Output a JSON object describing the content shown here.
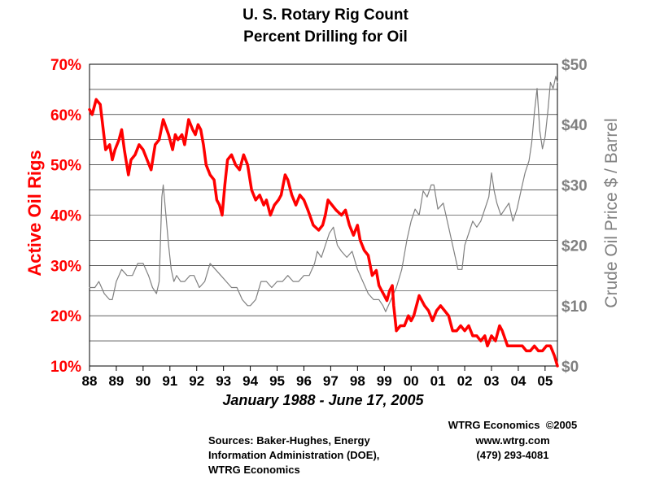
{
  "chart_data": {
    "type": "line",
    "title": [
      "U. S. Rotary Rig Count",
      "Percent Drilling for Oil"
    ],
    "subtitle": "January 1988 - June 17, 2005",
    "y_left": {
      "label": "Active Oil Rigs",
      "ticks": [
        "70%",
        "60%",
        "50%",
        "40%",
        "30%",
        "20%",
        "10%"
      ],
      "tick_values": [
        70,
        60,
        50,
        40,
        30,
        20,
        10
      ],
      "range": [
        10,
        70
      ],
      "color": "#ff0000"
    },
    "y_right": {
      "label": "Crude Oil Price $ / Barrel",
      "ticks": [
        "$50",
        "$40",
        "$30",
        "$20",
        "$10",
        "$0"
      ],
      "tick_values": [
        50,
        40,
        30,
        20,
        10,
        0
      ],
      "range": [
        0,
        50
      ],
      "color": "#808080"
    },
    "x_axis": {
      "ticks": [
        "88",
        "89",
        "90",
        "91",
        "92",
        "93",
        "94",
        "95",
        "96",
        "97",
        "98",
        "99",
        "00",
        "01",
        "02",
        "03",
        "04",
        "05"
      ],
      "tick_values": [
        1988,
        1989,
        1990,
        1991,
        1992,
        1993,
        1994,
        1995,
        1996,
        1997,
        1998,
        1999,
        2000,
        2001,
        2002,
        2003,
        2004,
        2005
      ],
      "range": [
        1988,
        2005.46
      ]
    },
    "grid": "horizontal",
    "series": [
      {
        "axis": "left",
        "color": "#ff0000",
        "x": [
          1988.0,
          1988.1,
          1988.25,
          1988.4,
          1988.6,
          1988.75,
          1988.85,
          1988.95,
          1989.1,
          1989.2,
          1989.3,
          1989.45,
          1989.55,
          1989.7,
          1989.85,
          1990.0,
          1990.15,
          1990.3,
          1990.45,
          1990.6,
          1990.75,
          1990.95,
          1991.1,
          1991.2,
          1991.3,
          1991.45,
          1991.55,
          1991.7,
          1991.85,
          1991.95,
          1992.05,
          1992.15,
          1992.25,
          1992.35,
          1992.5,
          1992.65,
          1992.75,
          1992.85,
          1992.95,
          1993.05,
          1993.15,
          1993.3,
          1993.45,
          1993.6,
          1993.75,
          1993.9,
          1994.05,
          1994.2,
          1994.35,
          1994.5,
          1994.6,
          1994.75,
          1994.9,
          1995.05,
          1995.15,
          1995.3,
          1995.4,
          1995.55,
          1995.7,
          1995.85,
          1996.0,
          1996.15,
          1996.35,
          1996.55,
          1996.7,
          1996.8,
          1996.9,
          1997.05,
          1997.2,
          1997.4,
          1997.55,
          1997.7,
          1997.85,
          1998.0,
          1998.1,
          1998.25,
          1998.4,
          1998.55,
          1998.7,
          1998.8,
          1998.9,
          1999.0,
          1999.1,
          1999.2,
          1999.3,
          1999.35,
          1999.45,
          1999.6,
          1999.75,
          1999.9,
          2000.0,
          2000.1,
          2000.3,
          2000.5,
          2000.65,
          2000.8,
          2000.95,
          2001.1,
          2001.25,
          2001.4,
          2001.55,
          2001.7,
          2001.85,
          2002.0,
          2002.15,
          2002.3,
          2002.45,
          2002.6,
          2002.75,
          2002.85,
          2003.0,
          2003.15,
          2003.3,
          2003.4,
          2003.6,
          2003.8,
          2004.0,
          2004.15,
          2004.3,
          2004.45,
          2004.6,
          2004.75,
          2004.9,
          2005.05,
          2005.2,
          2005.35,
          2005.46
        ],
        "values": [
          61,
          60,
          63,
          62,
          53,
          54,
          51,
          53,
          55,
          57,
          53,
          48,
          51,
          52,
          54,
          53,
          51,
          49,
          54,
          55,
          59,
          56,
          53,
          56,
          55,
          56,
          54,
          59,
          57,
          56,
          58,
          57,
          54,
          50,
          48,
          47,
          43,
          42,
          40,
          46,
          51,
          52,
          50,
          49,
          52,
          50,
          45,
          43,
          44,
          42,
          43,
          40,
          42,
          43,
          44,
          48,
          47,
          44,
          42,
          44,
          43,
          41,
          38,
          37,
          38,
          40,
          43,
          42,
          41,
          40,
          41,
          38,
          36,
          38,
          35,
          33,
          32,
          28,
          29,
          26,
          25,
          24,
          23,
          25,
          26,
          22,
          17,
          18,
          18,
          20,
          19,
          20,
          24,
          22,
          21,
          19,
          21,
          22,
          21,
          20,
          17,
          17,
          18,
          17,
          18,
          16,
          16,
          15,
          16,
          14,
          16,
          15,
          18,
          17,
          14,
          14,
          14,
          14,
          13,
          13,
          14,
          13,
          13,
          14,
          14,
          12,
          10
        ]
      },
      {
        "axis": "right",
        "color": "#808080",
        "x": [
          1988.0,
          1988.2,
          1988.35,
          1988.55,
          1988.75,
          1988.85,
          1989.0,
          1989.2,
          1989.4,
          1989.6,
          1989.8,
          1990.0,
          1990.2,
          1990.35,
          1990.5,
          1990.6,
          1990.7,
          1990.75,
          1990.85,
          1990.95,
          1991.05,
          1991.15,
          1991.25,
          1991.4,
          1991.55,
          1991.75,
          1991.9,
          1992.1,
          1992.3,
          1992.5,
          1992.7,
          1992.9,
          1993.1,
          1993.3,
          1993.5,
          1993.7,
          1993.9,
          1994.0,
          1994.2,
          1994.4,
          1994.6,
          1994.8,
          1995.0,
          1995.2,
          1995.4,
          1995.6,
          1995.8,
          1996.0,
          1996.2,
          1996.4,
          1996.5,
          1996.65,
          1996.8,
          1996.95,
          1997.1,
          1997.25,
          1997.4,
          1997.6,
          1997.8,
          1998.0,
          1998.2,
          1998.4,
          1998.6,
          1998.8,
          1998.95,
          1999.05,
          1999.25,
          1999.45,
          1999.65,
          1999.85,
          2000.0,
          2000.15,
          2000.3,
          2000.45,
          2000.6,
          2000.75,
          2000.85,
          2001.0,
          2001.2,
          2001.4,
          2001.6,
          2001.75,
          2001.9,
          2002.0,
          2002.15,
          2002.3,
          2002.45,
          2002.6,
          2002.75,
          2002.9,
          2003.0,
          2003.1,
          2003.2,
          2003.35,
          2003.5,
          2003.65,
          2003.8,
          2003.95,
          2004.1,
          2004.25,
          2004.4,
          2004.5,
          2004.6,
          2004.7,
          2004.8,
          2004.9,
          2005.0,
          2005.1,
          2005.2,
          2005.3,
          2005.4,
          2005.46
        ],
        "values": [
          13,
          13,
          14,
          12,
          11,
          11,
          14,
          16,
          15,
          15,
          17,
          17,
          15,
          13,
          12,
          14,
          28,
          30,
          25,
          20,
          16,
          14,
          15,
          14,
          14,
          15,
          15,
          13,
          14,
          17,
          16,
          15,
          14,
          13,
          13,
          11,
          10,
          10,
          11,
          14,
          14,
          13,
          14,
          14,
          15,
          14,
          14,
          15,
          15,
          17,
          19,
          18,
          20,
          22,
          23,
          20,
          19,
          18,
          19,
          16,
          14,
          12,
          11,
          11,
          10,
          9,
          11,
          13,
          16,
          21,
          24,
          26,
          25,
          29,
          28,
          30,
          30,
          26,
          27,
          23,
          19,
          16,
          16,
          20,
          22,
          24,
          23,
          24,
          26,
          28,
          32,
          29,
          27,
          25,
          26,
          27,
          24,
          26,
          29,
          32,
          34,
          37,
          42,
          46,
          39,
          36,
          38,
          42,
          47,
          46,
          48,
          47
        ]
      }
    ]
  },
  "footer": {
    "sources": [
      "Sources: Baker-Hughes, Energy",
      "Information Administration (DOE),",
      "WTRG Economics"
    ],
    "credit": [
      "WTRG Economics  ©2005",
      "www.wtrg.com",
      "(479) 293-4081"
    ]
  }
}
